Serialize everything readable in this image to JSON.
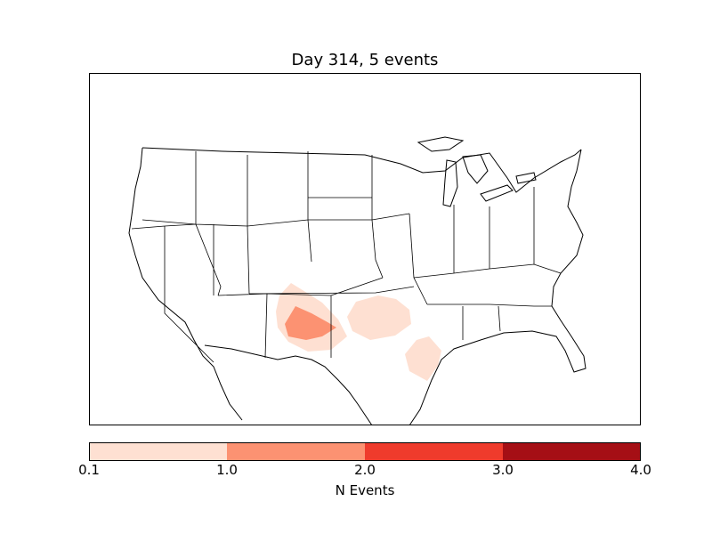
{
  "title": "Day 314, 5 events",
  "colorbar": {
    "label": "N Events",
    "ticks": [
      "0.1",
      "1.0",
      "2.0",
      "3.0",
      "4.0"
    ],
    "levels": [
      {
        "from": 0.1,
        "to": 1.0,
        "color": "#fee0d2"
      },
      {
        "from": 1.0,
        "to": 2.0,
        "color": "#fc9272"
      },
      {
        "from": 2.0,
        "to": 3.0,
        "color": "#ef3b2c"
      },
      {
        "from": 3.0,
        "to": 4.0,
        "color": "#a50f15"
      }
    ]
  },
  "colors": {
    "outline": "#000000",
    "background": "#ffffff"
  }
}
